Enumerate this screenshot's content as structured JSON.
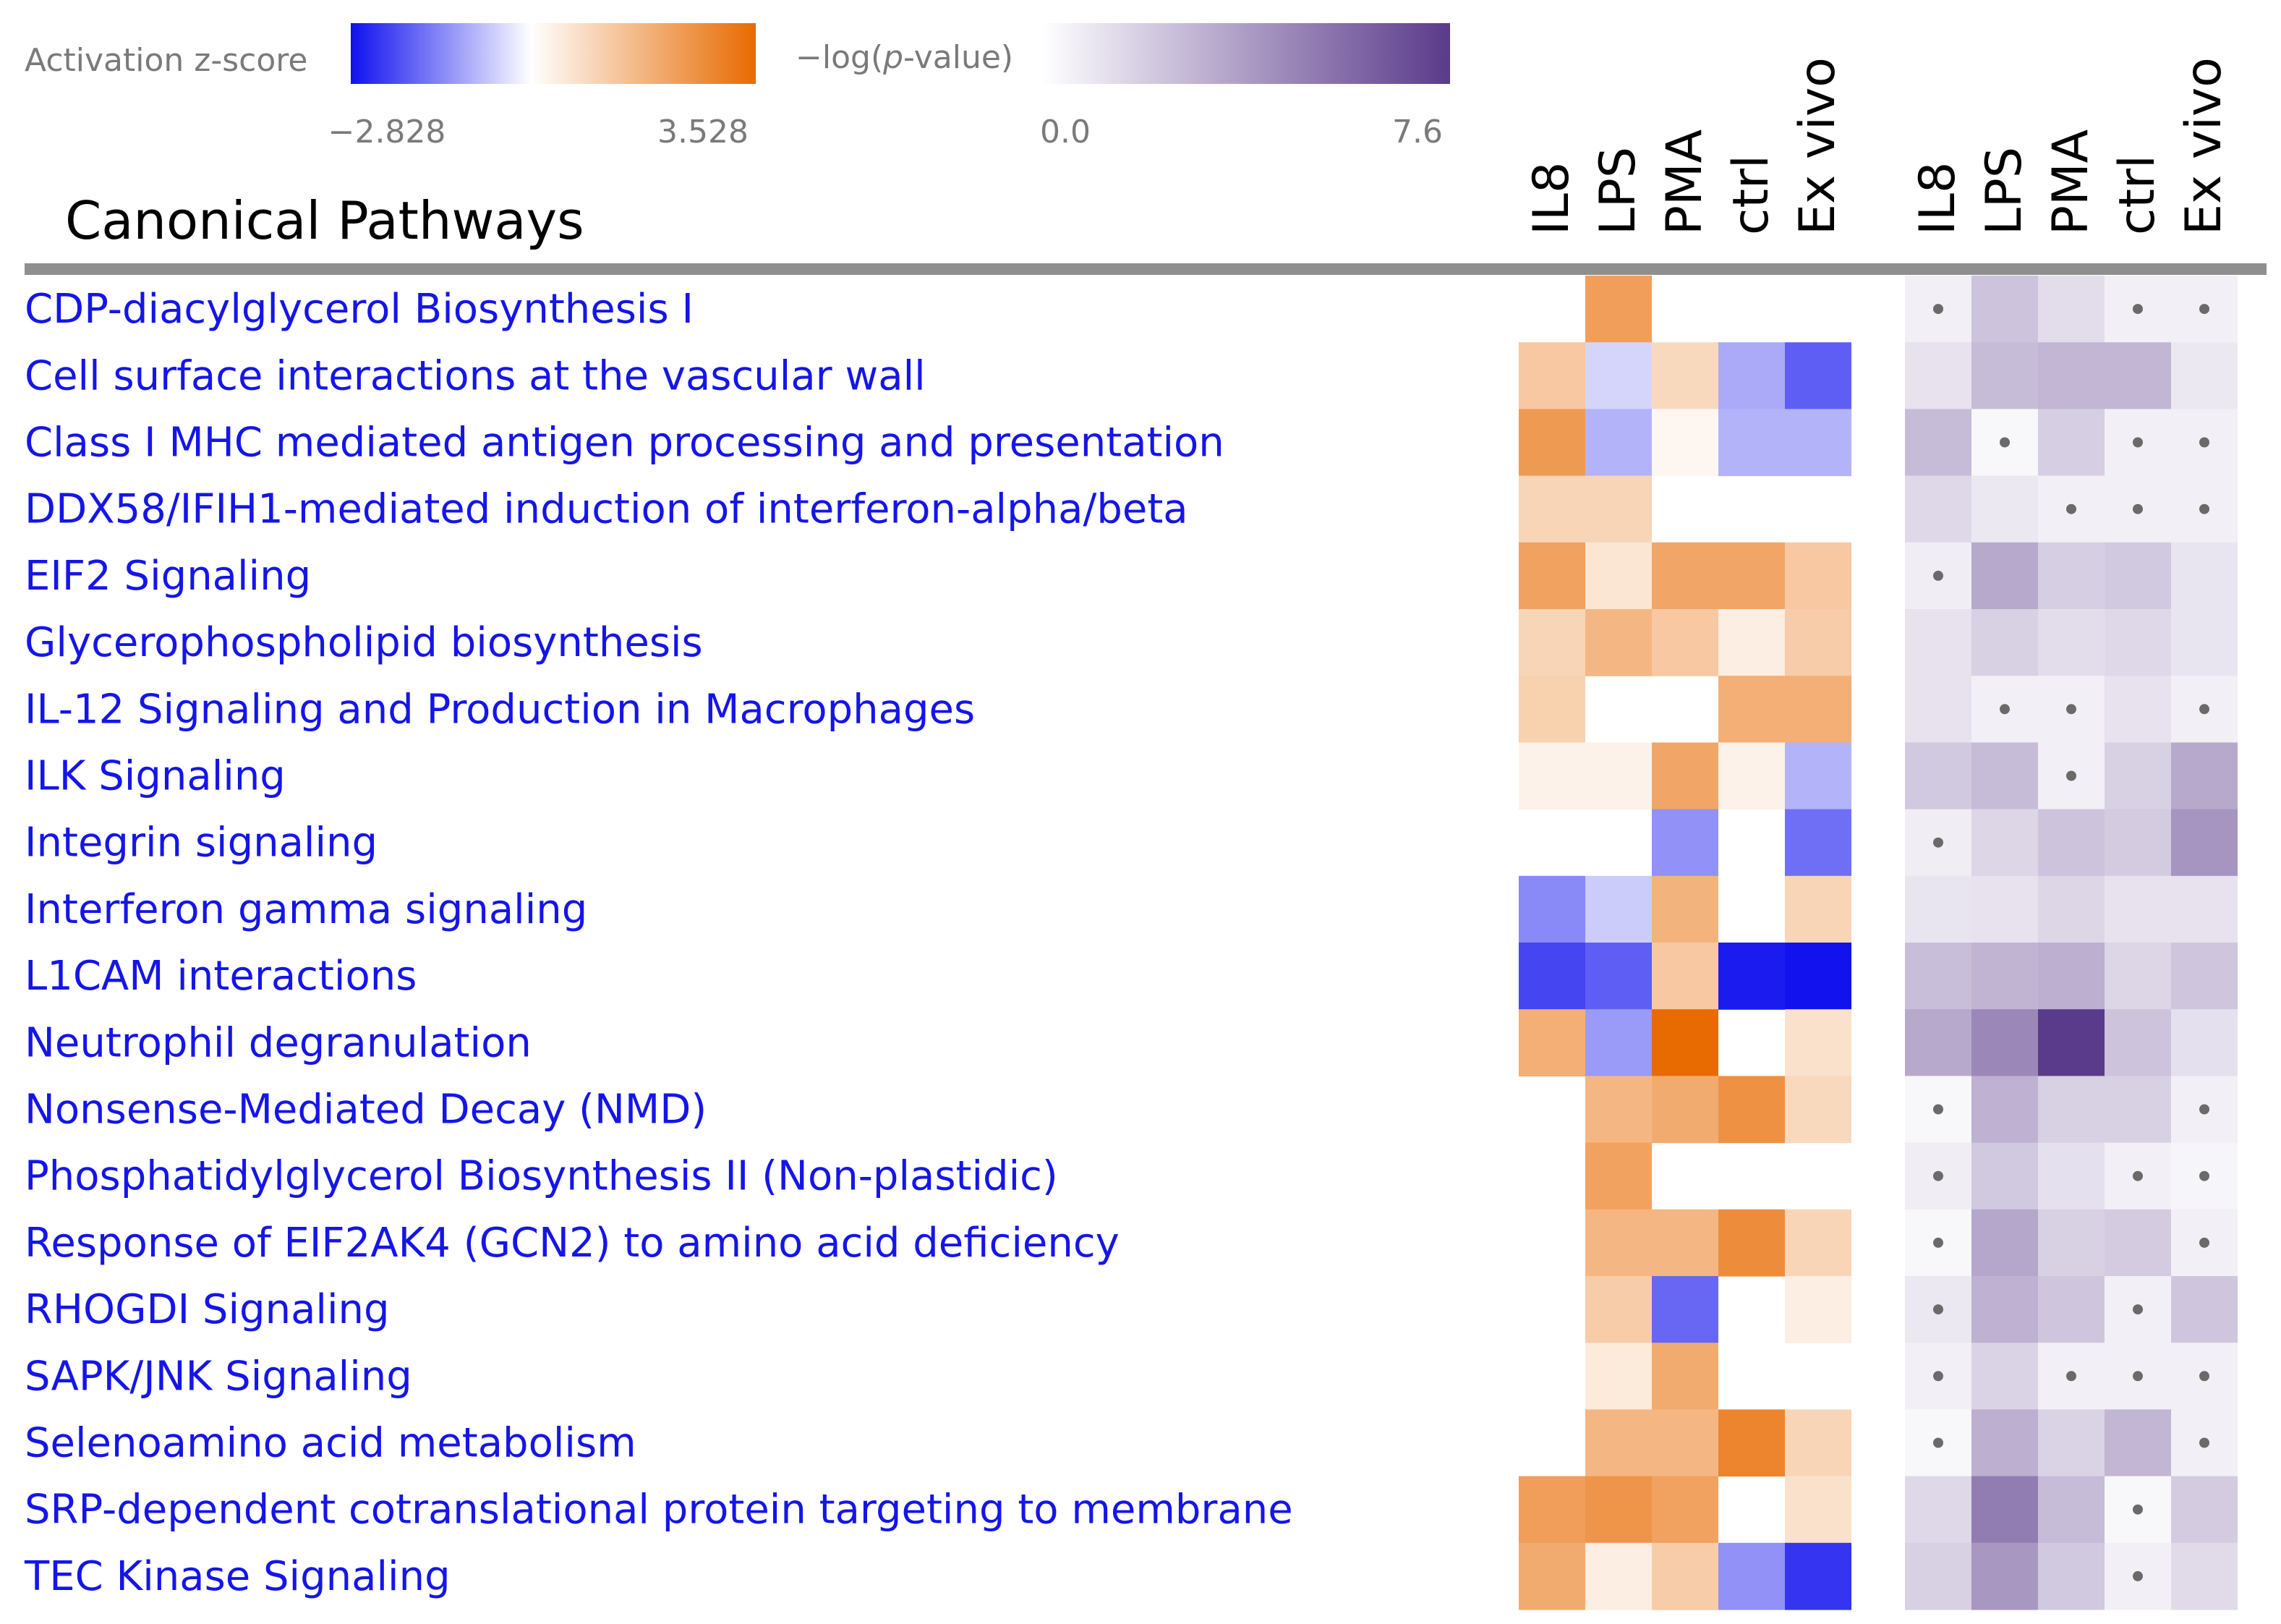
{
  "chart_data": {
    "type": "heatmap",
    "title": "Canonical Pathways",
    "legends": {
      "zscore": {
        "label": "Activation z-score",
        "min": -2.828,
        "max": 3.528,
        "min_label": "−2.828",
        "max_label": "3.528",
        "min_color": "#1010ee",
        "mid_color": "#ffffff",
        "max_color": "#e86a00"
      },
      "pvalue": {
        "label_prefix": "−log(",
        "label_italic": "p",
        "label_suffix": "-value)",
        "min": 0.0,
        "max": 7.6,
        "min_label": "0.0",
        "max_label": "7.6",
        "min_color": "#ffffff",
        "max_color": "#5a3a8a"
      }
    },
    "columns": [
      "IL8",
      "LPS",
      "PMA",
      "ctrl",
      "Ex vivo"
    ],
    "rows": [
      {
        "pathway": "CDP-diacylglycerol Biosynthesis I",
        "z": [
          null,
          2.3,
          null,
          null,
          null
        ],
        "logp": [
          0.6,
          2.3,
          1.3,
          0.6,
          0.6
        ],
        "dot": [
          true,
          false,
          false,
          true,
          true
        ]
      },
      {
        "pathway": "Cell surface interactions at the vascular wall",
        "z": [
          1.3,
          -0.5,
          0.9,
          -1.0,
          -1.9
        ],
        "logp": [
          1.1,
          2.6,
          2.8,
          2.8,
          0.9
        ],
        "dot": [
          false,
          false,
          false,
          false,
          false
        ]
      },
      {
        "pathway": "Class I MHC mediated antigen processing and presentation",
        "z": [
          2.4,
          -0.9,
          0.2,
          -0.9,
          -0.9
        ],
        "logp": [
          2.6,
          0.3,
          1.9,
          0.6,
          0.6
        ],
        "dot": [
          false,
          true,
          false,
          true,
          true
        ]
      },
      {
        "pathway": "DDX58/IFIH1-mediated induction of interferon-alpha/beta",
        "z": [
          1.0,
          1.0,
          null,
          null,
          null
        ],
        "logp": [
          1.5,
          0.9,
          0.6,
          0.6,
          0.6
        ],
        "dot": [
          false,
          false,
          true,
          true,
          true
        ]
      },
      {
        "pathway": "EIF2 Signaling",
        "z": [
          2.2,
          0.6,
          2.1,
          2.1,
          1.3
        ],
        "logp": [
          0.7,
          3.3,
          1.9,
          2.1,
          1.0
        ],
        "dot": [
          true,
          false,
          false,
          false,
          false
        ]
      },
      {
        "pathway": "Glycerophospholipid biosynthesis",
        "z": [
          1.0,
          1.7,
          1.3,
          0.4,
          1.2
        ],
        "logp": [
          1.1,
          1.8,
          1.3,
          1.5,
          1.0
        ],
        "dot": [
          false,
          false,
          false,
          false,
          false
        ]
      },
      {
        "pathway": "IL-12 Signaling and Production in Macrophages",
        "z": [
          1.1,
          null,
          null,
          1.9,
          1.9
        ],
        "logp": [
          1.1,
          0.6,
          0.6,
          1.1,
          0.6
        ],
        "dot": [
          false,
          true,
          true,
          false,
          true
        ]
      },
      {
        "pathway": "ILK Signaling",
        "z": [
          0.3,
          0.3,
          2.1,
          0.3,
          -0.9
        ],
        "logp": [
          2.1,
          2.6,
          0.6,
          1.8,
          3.3
        ],
        "dot": [
          false,
          false,
          true,
          false,
          false
        ]
      },
      {
        "pathway": "Integrin signaling",
        "z": [
          null,
          null,
          -1.3,
          null,
          -1.7
        ],
        "logp": [
          0.7,
          1.6,
          2.3,
          2.0,
          4.1
        ],
        "dot": [
          true,
          false,
          false,
          false,
          false
        ]
      },
      {
        "pathway": "Interferon gamma signaling",
        "z": [
          -1.4,
          -0.6,
          1.8,
          null,
          1.0
        ],
        "logp": [
          1.0,
          1.1,
          1.6,
          1.1,
          1.1
        ],
        "dot": [
          false,
          false,
          false,
          false,
          false
        ]
      },
      {
        "pathway": "L1CAM interactions",
        "z": [
          -2.2,
          -1.9,
          1.3,
          -2.7,
          -2.8
        ],
        "logp": [
          2.5,
          2.9,
          3.1,
          1.6,
          2.2
        ],
        "dot": [
          false,
          false,
          false,
          false,
          false
        ]
      },
      {
        "pathway": "Neutrophil degranulation",
        "z": [
          1.9,
          -1.2,
          3.5,
          null,
          0.7
        ],
        "logp": [
          3.3,
          4.6,
          7.6,
          2.3,
          1.2
        ],
        "dot": [
          false,
          false,
          false,
          false,
          false
        ]
      },
      {
        "pathway": "Nonsense-Mediated Decay (NMD)",
        "z": [
          null,
          1.7,
          2.0,
          2.6,
          0.9
        ],
        "logp": [
          0.3,
          3.0,
          1.8,
          1.8,
          0.6
        ],
        "dot": [
          true,
          false,
          false,
          false,
          true
        ]
      },
      {
        "pathway": "Phosphatidylglycerol Biosynthesis II (Non-plastidic)",
        "z": [
          null,
          2.2,
          null,
          null,
          null
        ],
        "logp": [
          0.7,
          2.1,
          1.2,
          0.6,
          0.4
        ],
        "dot": [
          true,
          false,
          false,
          true,
          true
        ]
      },
      {
        "pathway": "Response of EIF2AK4 (GCN2) to amino acid deficiency",
        "z": [
          null,
          1.7,
          1.7,
          2.7,
          1.0
        ],
        "logp": [
          0.3,
          3.4,
          1.8,
          2.0,
          0.6
        ],
        "dot": [
          true,
          false,
          false,
          false,
          true
        ]
      },
      {
        "pathway": "RHOGDI Signaling",
        "z": [
          null,
          1.2,
          -1.8,
          null,
          0.4
        ],
        "logp": [
          0.9,
          3.0,
          2.2,
          0.6,
          2.2
        ],
        "dot": [
          true,
          false,
          false,
          true,
          false
        ]
      },
      {
        "pathway": "SAPK/JNK Signaling",
        "z": [
          null,
          0.5,
          2.0,
          null,
          null
        ],
        "logp": [
          0.6,
          1.7,
          0.6,
          0.6,
          0.6
        ],
        "dot": [
          true,
          false,
          true,
          true,
          true
        ]
      },
      {
        "pathway": "Selenoamino acid metabolism",
        "z": [
          null,
          1.7,
          1.7,
          2.9,
          1.0
        ],
        "logp": [
          0.3,
          3.1,
          1.7,
          2.8,
          0.6
        ],
        "dot": [
          true,
          false,
          false,
          false,
          true
        ]
      },
      {
        "pathway": "SRP-dependent cotranslational protein targeting to membrane",
        "z": [
          2.3,
          2.5,
          2.2,
          null,
          0.7
        ],
        "logp": [
          1.5,
          5.0,
          2.6,
          0.3,
          2.0
        ],
        "dot": [
          false,
          false,
          false,
          true,
          false
        ]
      },
      {
        "pathway": "TEC Kinase Signaling",
        "z": [
          2.0,
          0.4,
          1.2,
          -1.3,
          -2.4
        ],
        "logp": [
          1.8,
          4.0,
          2.1,
          0.6,
          1.4
        ],
        "dot": [
          false,
          false,
          false,
          true,
          false
        ]
      }
    ]
  }
}
